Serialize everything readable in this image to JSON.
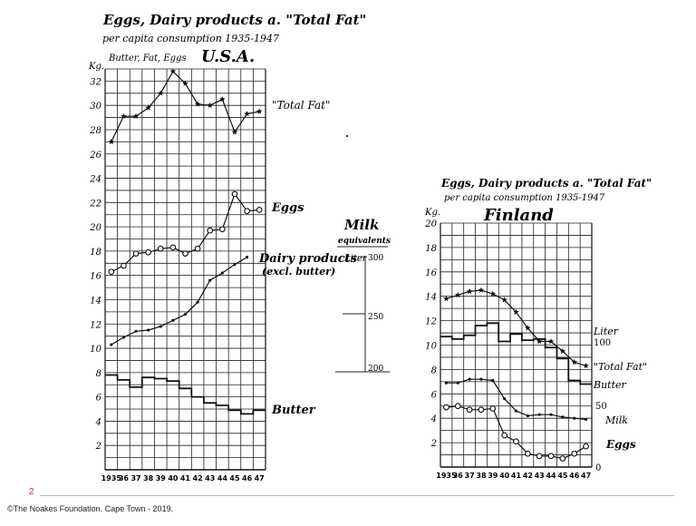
{
  "slide": {
    "page_number": "2",
    "copyright": "©The Noakes Foundation. Cape Town - 2019."
  },
  "milk_scale": {
    "title_line1": "Milk",
    "title_line2": "equivalents",
    "unit": "Liter",
    "ticks": [
      "300",
      "250",
      "200"
    ]
  },
  "chart_data": [
    {
      "type": "line",
      "title_line1": "Eggs, Dairy products a. \"Total Fat\"",
      "title_line2": "per capita consumption 1935-1947",
      "country": "U.S.A.",
      "ylabel_unit": "Kg.",
      "ylabel": "Butter, Fat, Eggs",
      "x_labels": [
        "1935",
        "36",
        "37",
        "38",
        "39",
        "40",
        "41",
        "42",
        "43",
        "44",
        "45",
        "46",
        "47"
      ],
      "ylim": [
        0,
        33
      ],
      "y_ticks": [
        2,
        4,
        6,
        8,
        10,
        12,
        14,
        16,
        18,
        20,
        22,
        24,
        26,
        28,
        30,
        32
      ],
      "grid": true,
      "series": [
        {
          "name": "\"Total Fat\"",
          "marker": "star",
          "style": "line",
          "values": [
            27.0,
            29.1,
            29.1,
            29.8,
            31.0,
            32.8,
            31.8,
            30.1,
            30.0,
            30.5,
            27.8,
            29.3,
            29.5
          ]
        },
        {
          "name": "Eggs",
          "marker": "circle",
          "style": "line",
          "values": [
            16.3,
            16.8,
            17.8,
            17.9,
            18.2,
            18.3,
            17.8,
            18.2,
            19.7,
            19.8,
            22.7,
            21.3,
            21.4
          ]
        },
        {
          "name": "Dairy products",
          "name_line2": "(excl. butter)",
          "marker": "dot",
          "style": "line",
          "values": [
            10.3,
            10.9,
            11.4,
            11.5,
            11.8,
            12.3,
            12.8,
            13.8,
            15.6,
            16.2,
            16.9,
            17.5,
            null
          ]
        },
        {
          "name": "Butter",
          "marker": "none",
          "style": "step",
          "values": [
            7.8,
            7.4,
            6.8,
            7.6,
            7.5,
            7.3,
            6.7,
            6.0,
            5.5,
            5.3,
            4.9,
            4.6,
            4.9
          ]
        }
      ]
    },
    {
      "type": "line",
      "title_line1": "Eggs, Dairy products a. \"Total Fat\"",
      "title_line2": "per capita consumption 1935-1947",
      "country": "Finland",
      "ylabel_unit": "Kg.",
      "x_labels": [
        "1935",
        "36",
        "37",
        "38",
        "39",
        "40",
        "41",
        "42",
        "43",
        "44",
        "45",
        "46",
        "47"
      ],
      "ylim": [
        0,
        20
      ],
      "y_ticks": [
        2,
        4,
        6,
        8,
        10,
        12,
        14,
        16,
        18,
        20
      ],
      "grid": true,
      "right_axis": {
        "unit": "Liter",
        "labels": [
          "100",
          "50",
          "0"
        ]
      },
      "series": [
        {
          "name": "\"Total Fat\"",
          "marker": "star",
          "style": "line",
          "values": [
            13.8,
            14.1,
            14.4,
            14.5,
            14.2,
            13.7,
            12.7,
            11.4,
            10.3,
            10.3,
            9.5,
            8.6,
            8.3
          ]
        },
        {
          "name": "Butter",
          "marker": "none",
          "style": "step",
          "values": [
            10.7,
            10.5,
            10.8,
            11.6,
            11.8,
            10.3,
            10.9,
            10.4,
            10.5,
            9.8,
            8.9,
            7.1,
            6.8
          ]
        },
        {
          "name": "Milk",
          "marker": "dot",
          "style": "line",
          "values": [
            6.9,
            6.9,
            7.2,
            7.2,
            7.1,
            5.6,
            4.6,
            4.2,
            4.3,
            4.3,
            4.1,
            4.0,
            3.9
          ]
        },
        {
          "name": "Eggs",
          "marker": "circle",
          "style": "line",
          "values": [
            4.9,
            5.0,
            4.7,
            4.7,
            4.8,
            2.6,
            2.1,
            1.1,
            0.9,
            0.9,
            0.7,
            1.1,
            1.7
          ]
        }
      ]
    }
  ]
}
